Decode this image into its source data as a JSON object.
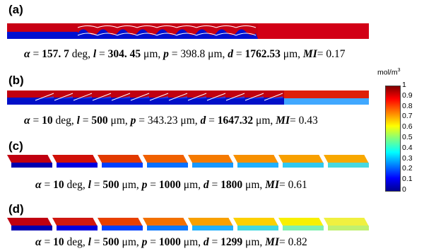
{
  "panels": [
    {
      "label": "(a)",
      "alpha": "157. 7",
      "l": "304. 45",
      "p": "398.8",
      "d": "1762.53",
      "mi": "0.17",
      "alpha_bold": true,
      "l_bold": true,
      "p_bold": false,
      "d_bold": true,
      "segments": [
        "#d4001a",
        "#c00010",
        "#a80010",
        "#c40012",
        "#a60010",
        "#c00012",
        "#a80010",
        "#d00012",
        "#e22010"
      ],
      "bottom": [
        "#1a1ad8",
        "#0000d8",
        "#0a20e0",
        "#0000d0",
        "#1020d8",
        "#0000d0",
        "#1020e0",
        "#0000c8",
        "#1a1ad8"
      ],
      "mixed_color": "#d4001c",
      "mixed_bottom": "#2a80ff"
    },
    {
      "label": "(b)",
      "alpha": "10",
      "l": "500",
      "p": "343.23",
      "d": "1647.32",
      "mi": "0.43",
      "alpha_bold": true,
      "l_bold": true,
      "p_bold": false,
      "d_bold": true,
      "mixed_color": "#e03000",
      "mixed_bottom": "#1f90ff"
    },
    {
      "label": "(c)",
      "alpha": "10",
      "l": "500",
      "p": "1000",
      "d": "1800",
      "mi": "0.61",
      "alpha_bold": true,
      "l_bold": true,
      "p_bold": true,
      "d_bold": true,
      "colors": [
        "#c00010",
        "#d01008",
        "#e23a00",
        "#f06000",
        "#f57a00",
        "#f79000",
        "#f8a000",
        "#f8a800"
      ],
      "bottoms": [
        "#0000b0",
        "#0000e0",
        "#0040ff",
        "#0a70ff",
        "#1898ff",
        "#20b0ff",
        "#30c8f0",
        "#48d8e0"
      ]
    },
    {
      "label": "(d)",
      "alpha": "10",
      "l": "500",
      "p": "1000",
      "d": "1299",
      "mi": "0.82",
      "alpha_bold": true,
      "l_bold": true,
      "p_bold": true,
      "d_bold": true,
      "colors": [
        "#c00010",
        "#d01810",
        "#e84000",
        "#f27000",
        "#f8a000",
        "#fcd000",
        "#f8f000",
        "#f0f040"
      ],
      "bottoms": [
        "#0000b0",
        "#0000e0",
        "#0040ff",
        "#0a78ff",
        "#20b0ff",
        "#40d8e0",
        "#80f0b0",
        "#c0f070"
      ]
    }
  ],
  "colorbar": {
    "unit": "mol/m",
    "unit_sup": "3",
    "ticks": [
      "1",
      "0.9",
      "0.8",
      "0.7",
      "0.6",
      "0.5",
      "0.4",
      "0.3",
      "0.2",
      "0.1",
      "0"
    ]
  },
  "text": {
    "deg": "deg,",
    "um": "μm,",
    "um_last": "μm,",
    "mi_label": "MI",
    "eq": "=",
    "alpha_sym": "α",
    "l_sym": "l",
    "p_sym": "p",
    "d_sym": "d"
  }
}
